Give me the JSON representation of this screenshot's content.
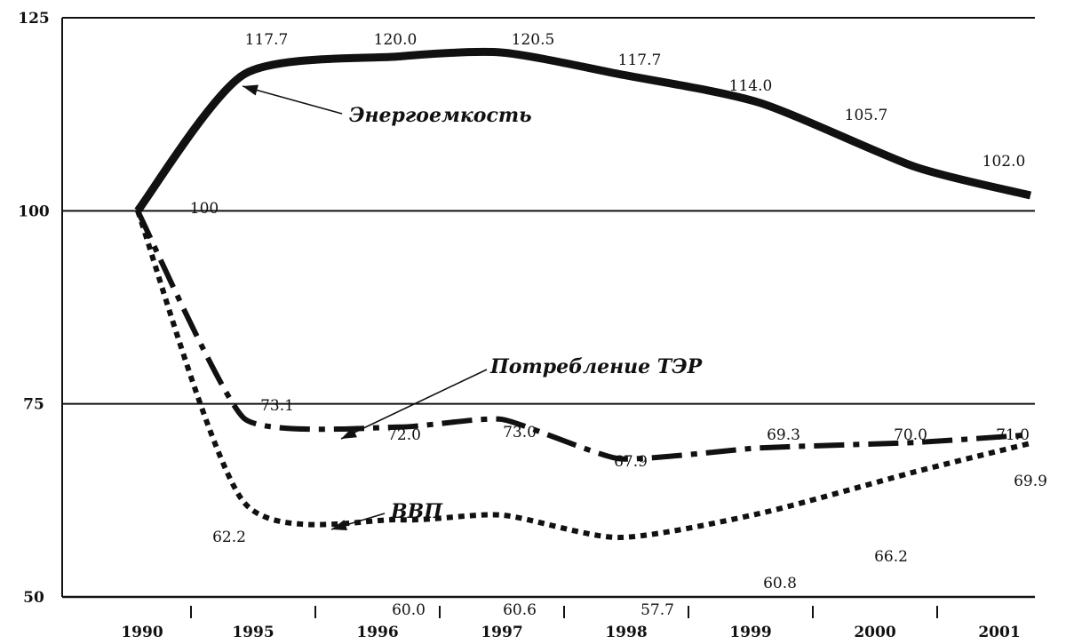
{
  "chart_data": {
    "type": "line",
    "title": "",
    "xlabel": "",
    "ylabel": "",
    "ylim": [
      50,
      125
    ],
    "y_ticks": [
      50,
      75,
      100,
      125
    ],
    "y_tick_labels": [
      "50",
      "75",
      "100",
      "125"
    ],
    "categories": [
      "1990",
      "1995",
      "1996",
      "1997",
      "1998",
      "1999",
      "2000",
      "2001"
    ],
    "grid": "horizontal lines at 75, 100, 125",
    "series": [
      {
        "name": "Энергоемкость",
        "style": "solid-thick",
        "color": "#111111",
        "values": [
          100,
          117.7,
          120.0,
          120.5,
          117.7,
          114.0,
          105.7,
          102.0
        ],
        "labels": [
          "100",
          "117.7",
          "120.0",
          "120.5",
          "117.7",
          "114.0",
          "105.7",
          "102.0"
        ]
      },
      {
        "name": "Потребление ТЭР",
        "style": "dash-dot",
        "color": "#111111",
        "values": [
          100,
          73.1,
          72.0,
          73.0,
          67.9,
          69.3,
          70.0,
          71.0
        ],
        "labels": [
          "",
          "73.1",
          "72.0",
          "73.0",
          "67.9",
          "69.3",
          "70.0",
          "71.0"
        ]
      },
      {
        "name": "ВВП",
        "style": "dotted",
        "color": "#111111",
        "values": [
          100,
          62.2,
          60.0,
          60.6,
          57.7,
          60.8,
          66.2,
          69.9
        ],
        "labels": [
          "",
          "62.2",
          "60.0",
          "60.6",
          "57.7",
          "60.8",
          "66.2",
          "69.9"
        ]
      }
    ]
  }
}
